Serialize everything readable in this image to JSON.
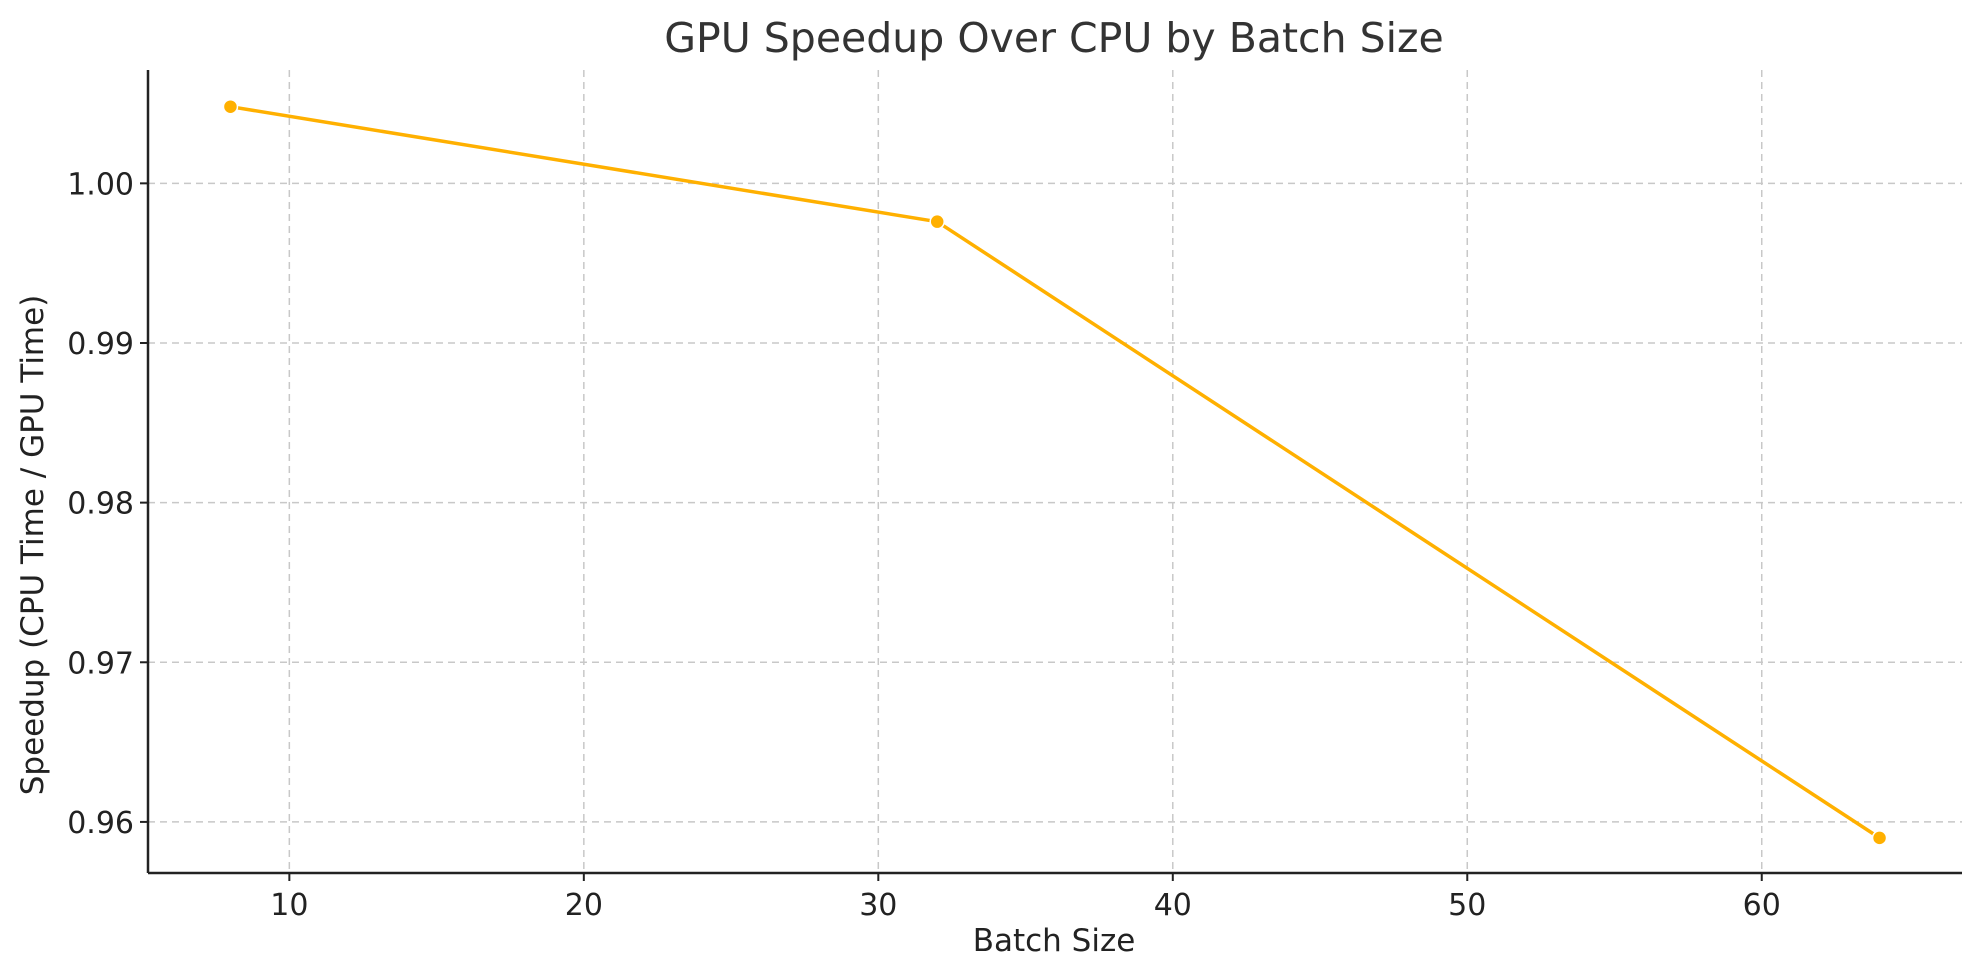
{
  "chart_data": {
    "type": "line",
    "title": "GPU Speedup Over CPU by Batch Size",
    "xlabel": "Batch Size",
    "ylabel": "Speedup (CPU Time / GPU Time)",
    "xlim": [
      5.2,
      66.8
    ],
    "ylim": [
      0.9568,
      1.0071
    ],
    "xticks": [
      10,
      20,
      30,
      40,
      50,
      60
    ],
    "yticks": [
      0.96,
      0.97,
      0.98,
      0.99,
      1.0
    ],
    "ytick_labels": [
      "0.96",
      "0.97",
      "0.98",
      "0.99",
      "1.00"
    ],
    "grid": true,
    "series": [
      {
        "color": "#FFB000",
        "marker": "circle",
        "x": [
          8,
          32,
          64
        ],
        "y": [
          1.0048,
          0.9976,
          0.959
        ]
      }
    ]
  }
}
